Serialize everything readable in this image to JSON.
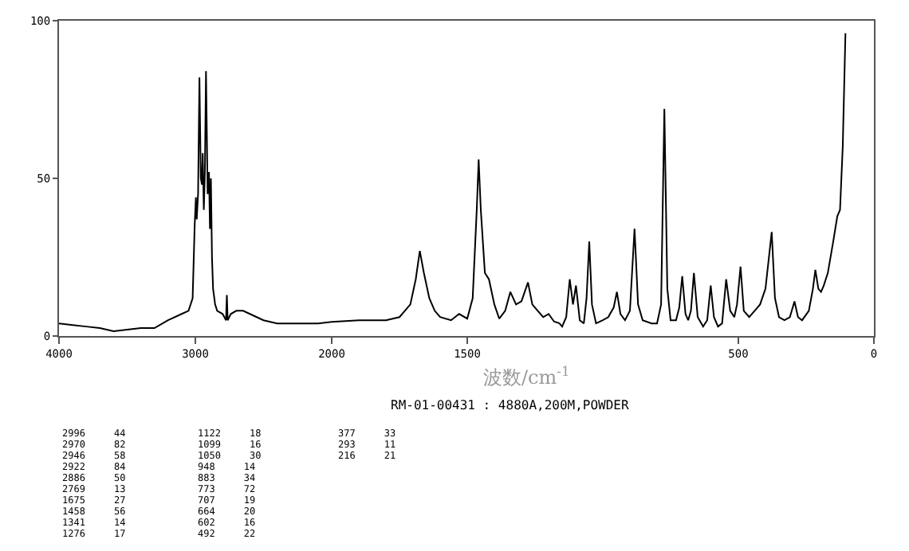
{
  "chart_data": [
    {
      "type": "line",
      "xlim": [
        4000,
        2000
      ],
      "xticks": [
        4000,
        3000,
        2000
      ],
      "ylim": [
        0,
        100
      ],
      "yticks": [
        0,
        50,
        100
      ],
      "series": [
        {
          "color": "#000000",
          "x": [
            4000,
            3900,
            3800,
            3700,
            3600,
            3500,
            3400,
            3300,
            3200,
            3100,
            3050,
            3020,
            3005,
            2996,
            2990,
            2980,
            2970,
            2960,
            2952,
            2946,
            2938,
            2930,
            2922,
            2910,
            2900,
            2893,
            2886,
            2878,
            2870,
            2855,
            2840,
            2800,
            2775,
            2769,
            2763,
            2740,
            2700,
            2650,
            2600,
            2550,
            2500,
            2400,
            2300,
            2200,
            2100,
            2000
          ],
          "values": [
            4,
            3.5,
            3,
            2.5,
            1.5,
            2,
            2.5,
            2.5,
            5,
            7,
            8,
            12,
            35,
            44,
            37,
            45,
            82,
            50,
            48,
            58,
            40,
            52,
            84,
            45,
            52,
            34,
            50,
            25,
            15,
            10,
            8,
            7,
            5,
            13,
            5,
            7,
            8,
            8,
            7,
            6,
            5,
            4,
            4,
            4,
            4,
            4.5
          ]
        }
      ],
      "annotations": [
        "2996 44",
        "2970 82",
        "2946 58",
        "2922 84",
        "2886 50",
        "2769 13",
        "1675 27",
        "1458 56",
        "1341 14",
        "1276 17",
        "1122 18",
        "1099 16",
        "1050 30",
        "948 14",
        "883 34",
        "773 72",
        "707 19",
        "664 20",
        "602 16",
        "492 22",
        "377 33",
        "293 11",
        "216 21"
      ]
    },
    {
      "type": "line",
      "xlim": [
        2000,
        0
      ],
      "xticks": [
        1500,
        500,
        0
      ],
      "ylim": [
        0,
        100
      ],
      "tick_labels": "x",
      "xlabel": "波数/cm$^{-1}$",
      "series": [
        {
          "color": "#000000",
          "x": [
            2000,
            1900,
            1800,
            1750,
            1710,
            1690,
            1675,
            1660,
            1640,
            1620,
            1600,
            1560,
            1530,
            1500,
            1480,
            1465,
            1458,
            1450,
            1435,
            1420,
            1400,
            1382,
            1360,
            1341,
            1320,
            1300,
            1276,
            1260,
            1240,
            1220,
            1200,
            1180,
            1160,
            1150,
            1135,
            1122,
            1110,
            1099,
            1085,
            1070,
            1060,
            1050,
            1040,
            1025,
            1000,
            980,
            960,
            948,
            935,
            918,
            900,
            883,
            870,
            853,
            820,
            800,
            785,
            773,
            762,
            750,
            730,
            718,
            707,
            695,
            685,
            675,
            664,
            650,
            630,
            615,
            602,
            590,
            575,
            560,
            545,
            530,
            515,
            505,
            492,
            480,
            460,
            440,
            420,
            400,
            377,
            365,
            350,
            330,
            310,
            293,
            280,
            265,
            240,
            225,
            216,
            205,
            195,
            185,
            170,
            150,
            135,
            125,
            115,
            105
          ],
          "values": [
            4.5,
            5,
            5,
            6,
            10,
            18,
            27,
            20,
            12,
            8,
            6,
            5,
            7,
            5.5,
            12,
            40,
            56,
            40,
            20,
            18,
            10,
            5.5,
            8,
            14,
            10,
            11,
            17,
            10,
            8,
            6,
            7,
            4.6,
            4,
            3,
            6,
            18,
            10,
            16,
            5,
            4,
            12,
            30,
            10,
            4,
            5,
            6,
            9,
            14,
            7,
            5,
            8,
            34,
            10,
            5,
            4,
            4,
            10,
            72,
            15,
            5,
            5,
            9,
            19,
            7,
            5,
            8,
            20,
            6,
            3,
            5,
            16,
            6,
            3,
            4,
            18,
            8,
            6,
            10,
            22,
            8,
            6,
            8,
            10,
            15,
            33,
            12,
            6,
            5,
            6,
            11,
            6,
            5,
            8,
            15,
            21,
            15,
            14,
            16,
            20,
            30,
            38,
            40,
            60,
            96
          ]
        }
      ],
      "annotations": [
        "RM-01-00431 : 4880A,200M,POWDER"
      ]
    }
  ]
}
